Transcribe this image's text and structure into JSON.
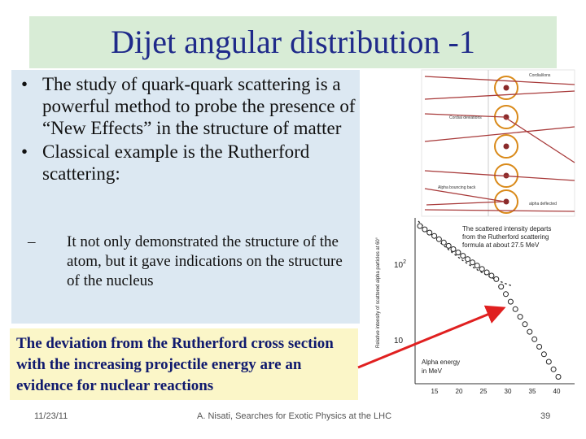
{
  "slide": {
    "title": "Dijet angular distribution -1",
    "bullets": [
      "The study of quark-quark scattering is a powerful method to probe the presence of “New Effects” in the structure of matter",
      "Classical example is the Rutherford scattering:"
    ],
    "bullet_marker": "•",
    "sub_bullets": [
      "It not only demonstrated the structure of the atom, but it gave indications on the structure of the nucleus"
    ],
    "sub_marker": "–",
    "callout": "The deviation from the Rutherford cross section with the increasing projectile energy are an evidence for nuclear reactions"
  },
  "figure": {
    "atom_labels": [
      "Cordial/ions",
      "Cordial deviations",
      "Alpha bouncing back",
      "alpha deflected"
    ],
    "annotation": "The scattered intensity departs from the Rutherford scattering formula at about 27.5 MeV",
    "ylabel": "Relative intensity of scattered alpha particles at 60°",
    "y_ticks": [
      "10",
      "10"
    ],
    "y_superscripts": [
      "2",
      ""
    ],
    "xlabel_line1": "Alpha energy",
    "xlabel_line2": "in MeV",
    "x_ticks": [
      "15",
      "20",
      "25",
      "30",
      "35",
      "40"
    ]
  },
  "footer": {
    "date": "11/23/11",
    "center": "A. Nisati, Searches for Exotic Physics at the LHC",
    "page": "39"
  },
  "colors": {
    "title": "#1f2a8a",
    "arrow": "#e02020",
    "atom": "#d98a1a",
    "track": "#a83a3a"
  }
}
